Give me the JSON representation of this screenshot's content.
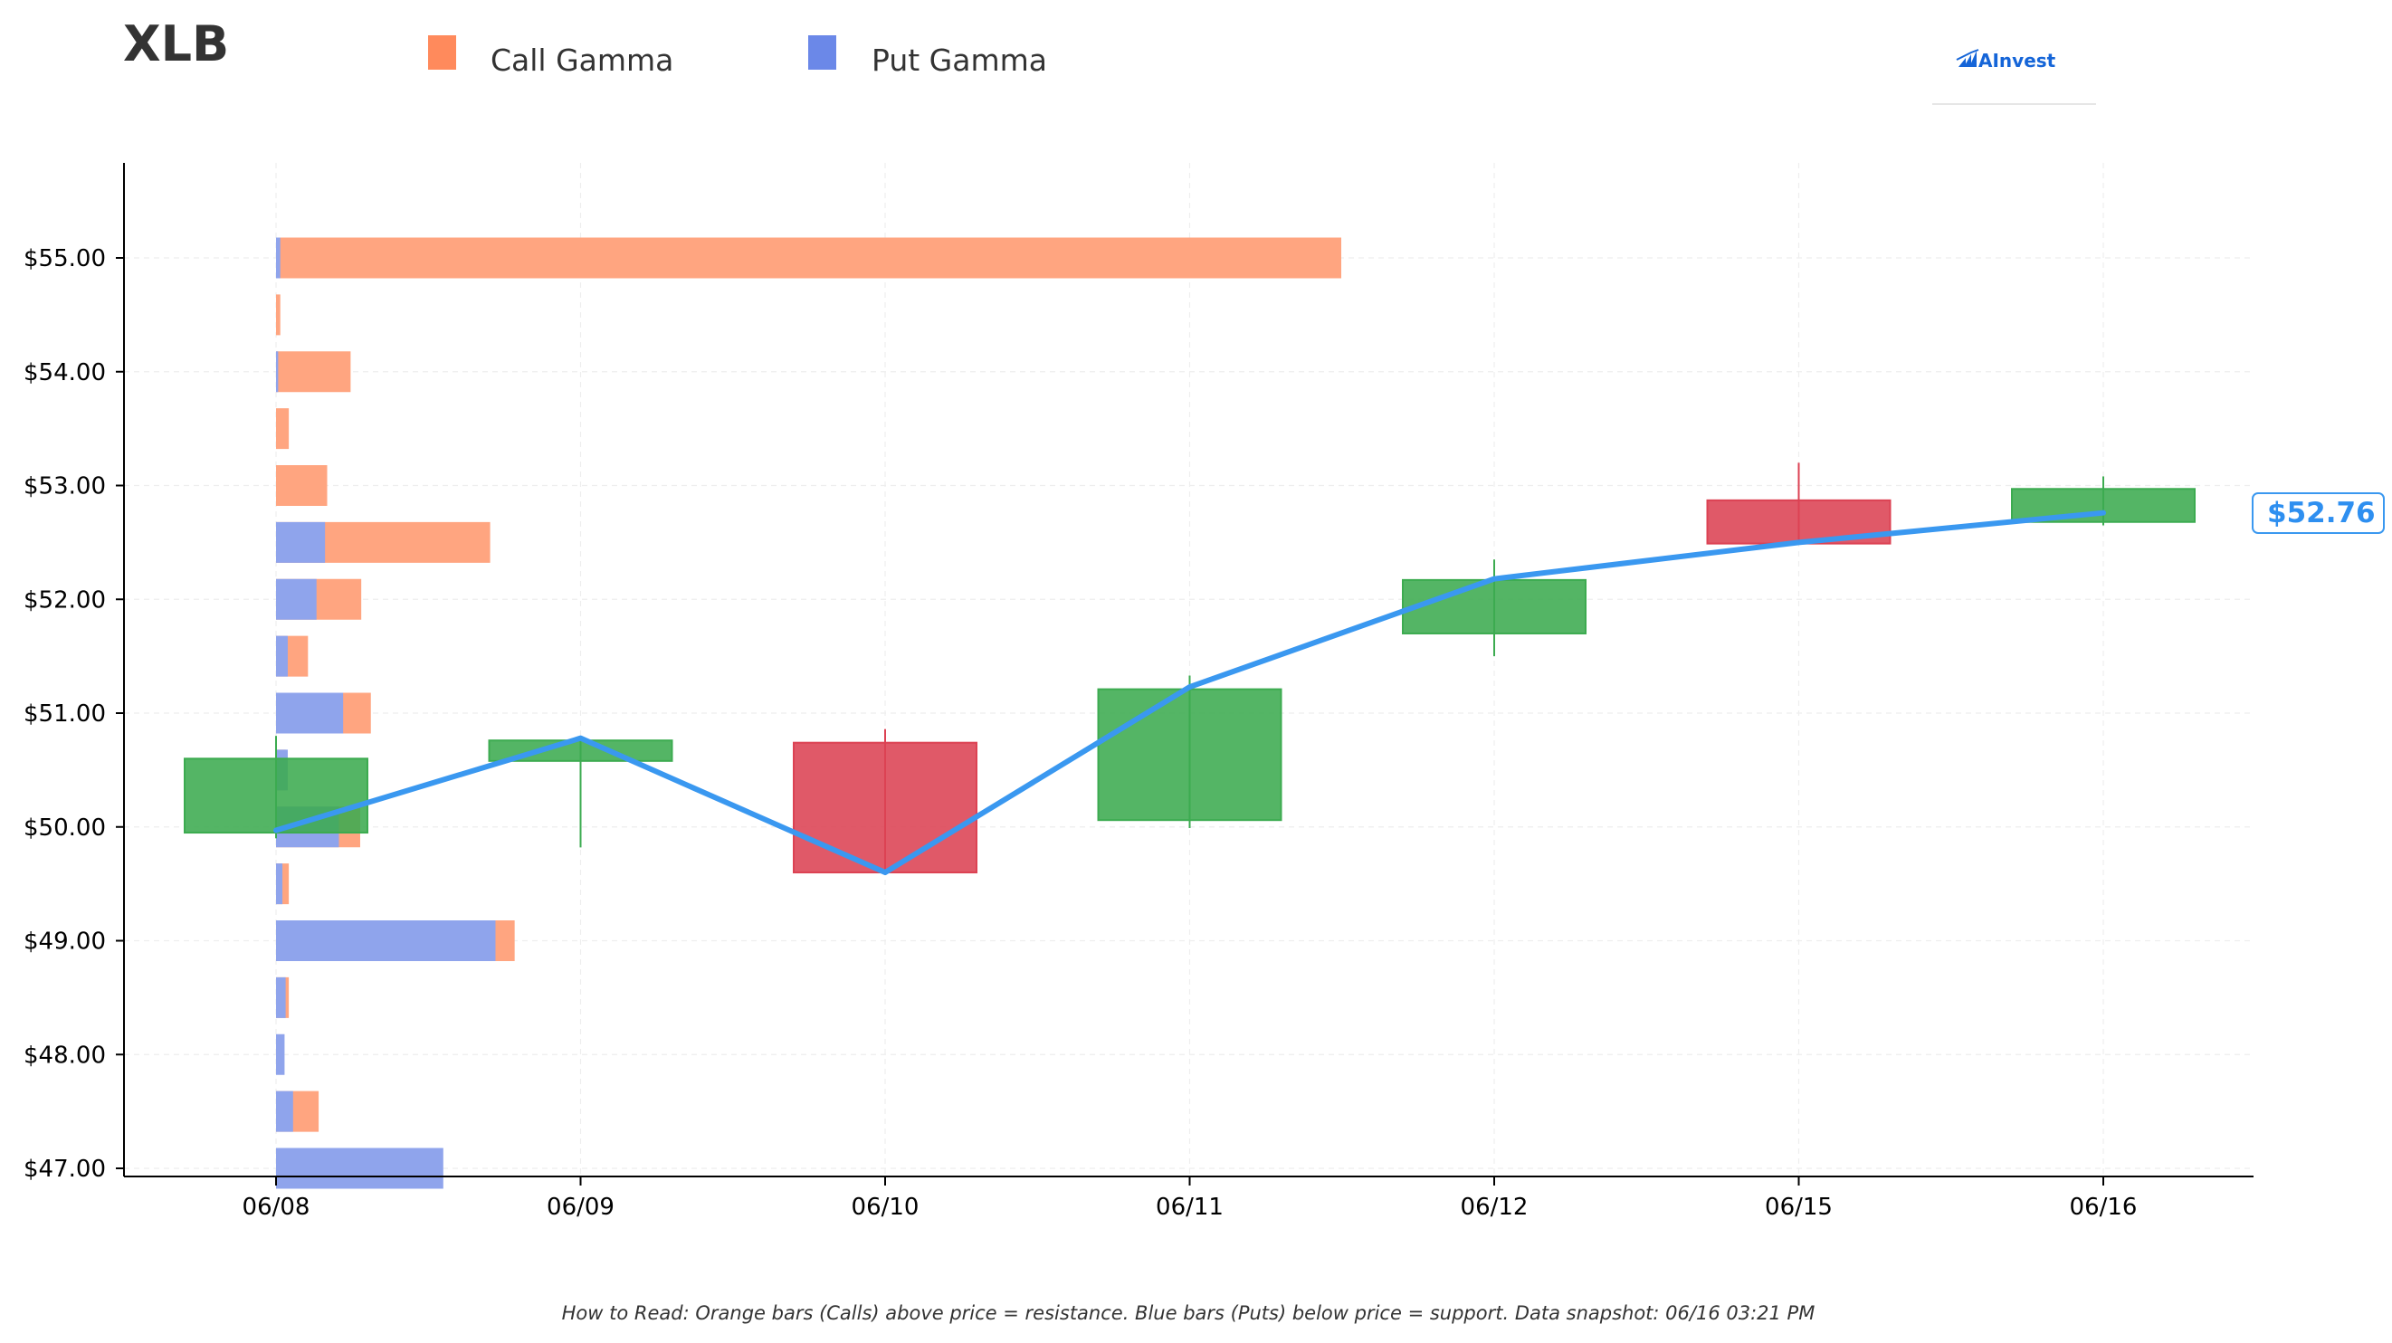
{
  "ticker": "XLB",
  "brand": {
    "name": "AInvest"
  },
  "legend": {
    "items": [
      {
        "label": "Call Gamma",
        "color": "#ff8a5c"
      },
      {
        "label": "Put Gamma",
        "color": "#6b88e8"
      }
    ]
  },
  "colors": {
    "call_bar": "#ffa580",
    "put_bar": "#8fa4ec",
    "candle_up": "#3cab50",
    "candle_down": "#dc4253",
    "price_line": "#3a98f0",
    "grid": "#eeeeee"
  },
  "current_price_label": "$52.76",
  "footnote": "How to Read: Orange bars (Calls) above price = resistance. Blue bars (Puts) below price = support. Data snapshot: 06/16 03:21 PM",
  "chart_data": {
    "type": "candlestick",
    "title": "XLB",
    "xlabel": "",
    "ylabel": "",
    "categories": [
      "06/08",
      "06/09",
      "06/10",
      "06/11",
      "06/12",
      "06/15",
      "06/16"
    ],
    "y_ticks": [
      "$47.00",
      "$48.00",
      "$49.00",
      "$50.00",
      "$51.00",
      "$52.00",
      "$53.00",
      "$54.00",
      "$55.00"
    ],
    "y_tick_values": [
      47,
      48,
      49,
      50,
      51,
      52,
      53,
      54,
      55
    ],
    "ylim": [
      46.95,
      55.85
    ],
    "grid": true,
    "legend_position": "top",
    "candles": [
      {
        "date": "06/08",
        "open": 49.95,
        "high": 50.8,
        "low": 49.9,
        "close": 50.6
      },
      {
        "date": "06/09",
        "open": 50.58,
        "high": 50.78,
        "low": 49.82,
        "close": 50.76
      },
      {
        "date": "06/10",
        "open": 50.74,
        "high": 50.86,
        "low": 49.6,
        "close": 49.6
      },
      {
        "date": "06/11",
        "open": 50.06,
        "high": 51.33,
        "low": 49.99,
        "close": 51.21
      },
      {
        "date": "06/12",
        "open": 51.7,
        "high": 52.35,
        "low": 51.5,
        "close": 52.17
      },
      {
        "date": "06/15",
        "open": 52.87,
        "high": 53.2,
        "low": 52.49,
        "close": 52.49
      },
      {
        "date": "06/16",
        "open": 52.68,
        "high": 53.08,
        "low": 52.65,
        "close": 52.97
      }
    ],
    "price_line": {
      "name": "Price",
      "values": [
        49.97,
        50.78,
        49.6,
        51.23,
        52.18,
        52.5,
        52.76
      ]
    },
    "gamma_exposure": {
      "note": "Horizontal bars anchored at 06/08; lengths in relative units (0-100 scale)",
      "strikes": [
        55.0,
        54.5,
        54.0,
        53.5,
        53.0,
        52.5,
        52.0,
        51.5,
        51.0,
        50.5,
        50.0,
        49.5,
        49.0,
        48.5,
        48.0,
        47.5,
        47.0
      ],
      "call_gamma": [
        100,
        0.4,
        7.0,
        1.2,
        4.8,
        20.1,
        8.0,
        3.0,
        8.9,
        0.9,
        7.9,
        1.2,
        22.4,
        1.2,
        0.0,
        4.0,
        0.0
      ],
      "put_gamma": [
        0.4,
        0.0,
        0.2,
        0.0,
        0.0,
        4.6,
        3.8,
        1.1,
        6.3,
        1.1,
        5.9,
        0.6,
        20.6,
        0.9,
        0.8,
        1.6,
        15.7
      ]
    }
  }
}
